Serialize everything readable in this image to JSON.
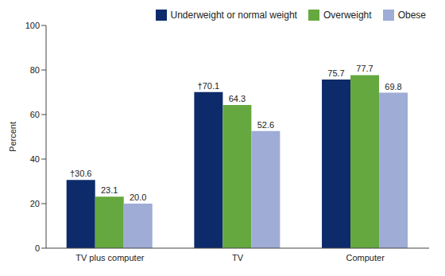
{
  "chart_data": {
    "type": "bar",
    "categories": [
      "TV plus computer",
      "TV",
      "Computer"
    ],
    "y_label": "Percent",
    "ylim": [
      0,
      100
    ],
    "yticks": [
      0,
      20,
      40,
      60,
      80,
      100
    ],
    "grid": false,
    "legend": "top-right",
    "data_labels": true,
    "series": [
      {
        "name": "Underweight or normal weight",
        "color": "#0d2a6b",
        "values": [
          30.6,
          70.1,
          75.7
        ],
        "value_labels": [
          "†30.6",
          "†70.1",
          "75.7"
        ]
      },
      {
        "name": "Overweight",
        "color": "#65a83f",
        "values": [
          23.1,
          64.3,
          77.7
        ]
      },
      {
        "name": "Obese",
        "color": "#9eacd6",
        "values": [
          20.0,
          52.6,
          69.8
        ],
        "value_labels": [
          "20.0",
          "52.6",
          "69.8"
        ]
      }
    ]
  }
}
